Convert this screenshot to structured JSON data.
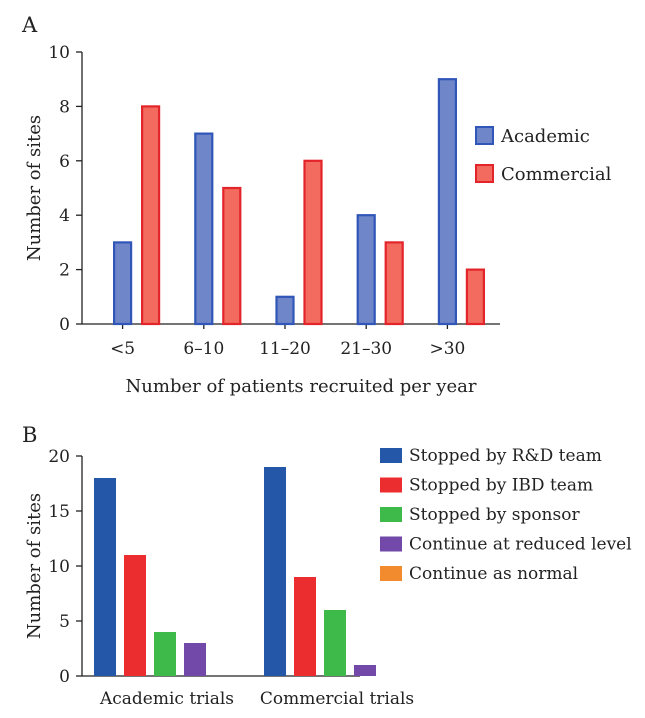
{
  "chart_data": [
    {
      "type": "bar",
      "panel_label": "A",
      "categories": [
        "<5",
        "6–10",
        "11–20",
        "21–30",
        ">30"
      ],
      "series": [
        {
          "name": "Academic",
          "values": [
            3,
            7,
            1,
            4,
            9
          ],
          "color": "#6F86C9",
          "stroke": "#2F56B8"
        },
        {
          "name": "Commercial",
          "values": [
            8,
            5,
            6,
            3,
            2
          ],
          "color": "#F26B5E",
          "stroke": "#E3242B"
        }
      ],
      "xlabel": "Number of patients recruited per year",
      "ylabel": "Number of sites",
      "ylim": [
        0,
        10
      ],
      "yticks": [
        0,
        2,
        4,
        6,
        8,
        10
      ],
      "legend_position": "right"
    },
    {
      "type": "bar",
      "panel_label": "B",
      "categories": [
        "Academic trials",
        "Commercial trials"
      ],
      "series": [
        {
          "name": "Stopped by R&D team",
          "values": [
            18,
            19
          ],
          "color": "#2457A8"
        },
        {
          "name": "Stopped by IBD team",
          "values": [
            11,
            9
          ],
          "color": "#EC2D2F"
        },
        {
          "name": "Stopped by sponsor",
          "values": [
            4,
            6
          ],
          "color": "#3DBA4A"
        },
        {
          "name": "Continue at reduced level",
          "values": [
            3,
            1
          ],
          "color": "#7249A8"
        },
        {
          "name": "Continue as normal",
          "values": [
            0,
            0
          ],
          "color": "#F28A2E"
        }
      ],
      "ylabel": "Number of sites",
      "ylim": [
        0,
        20
      ],
      "yticks": [
        0,
        5,
        10,
        15,
        20
      ],
      "legend_position": "top-right"
    }
  ]
}
